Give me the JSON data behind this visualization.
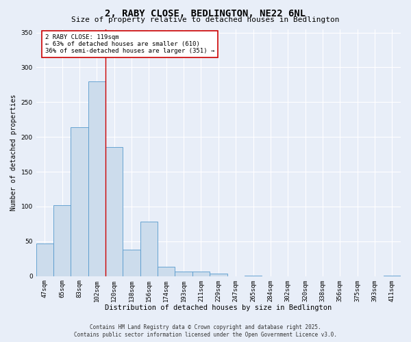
{
  "title": "2, RABY CLOSE, BEDLINGTON, NE22 6NL",
  "subtitle": "Size of property relative to detached houses in Bedlington",
  "xlabel": "Distribution of detached houses by size in Bedlington",
  "ylabel": "Number of detached properties",
  "categories": [
    "47sqm",
    "65sqm",
    "83sqm",
    "102sqm",
    "120sqm",
    "138sqm",
    "156sqm",
    "174sqm",
    "193sqm",
    "211sqm",
    "229sqm",
    "247sqm",
    "265sqm",
    "284sqm",
    "302sqm",
    "320sqm",
    "338sqm",
    "356sqm",
    "375sqm",
    "393sqm",
    "411sqm"
  ],
  "values": [
    47,
    102,
    214,
    280,
    185,
    38,
    78,
    13,
    7,
    7,
    4,
    0,
    1,
    0,
    0,
    0,
    0,
    0,
    0,
    0,
    1
  ],
  "bar_color": "#ccdcec",
  "bar_edge_color": "#5599cc",
  "background_color": "#e8eef8",
  "grid_color": "#ffffff",
  "annotation_text": "2 RABY CLOSE: 119sqm\n← 63% of detached houses are smaller (610)\n36% of semi-detached houses are larger (351) →",
  "annotation_box_color": "#ffffff",
  "annotation_box_edge": "#cc0000",
  "marker_line_color": "#cc0000",
  "ylim": [
    0,
    355
  ],
  "yticks": [
    0,
    50,
    100,
    150,
    200,
    250,
    300,
    350
  ],
  "footer": "Contains HM Land Registry data © Crown copyright and database right 2025.\nContains public sector information licensed under the Open Government Licence v3.0.",
  "title_fontsize": 10,
  "subtitle_fontsize": 8,
  "xlabel_fontsize": 7.5,
  "ylabel_fontsize": 7,
  "tick_fontsize": 6.5,
  "annotation_fontsize": 6.5,
  "footer_fontsize": 5.5
}
